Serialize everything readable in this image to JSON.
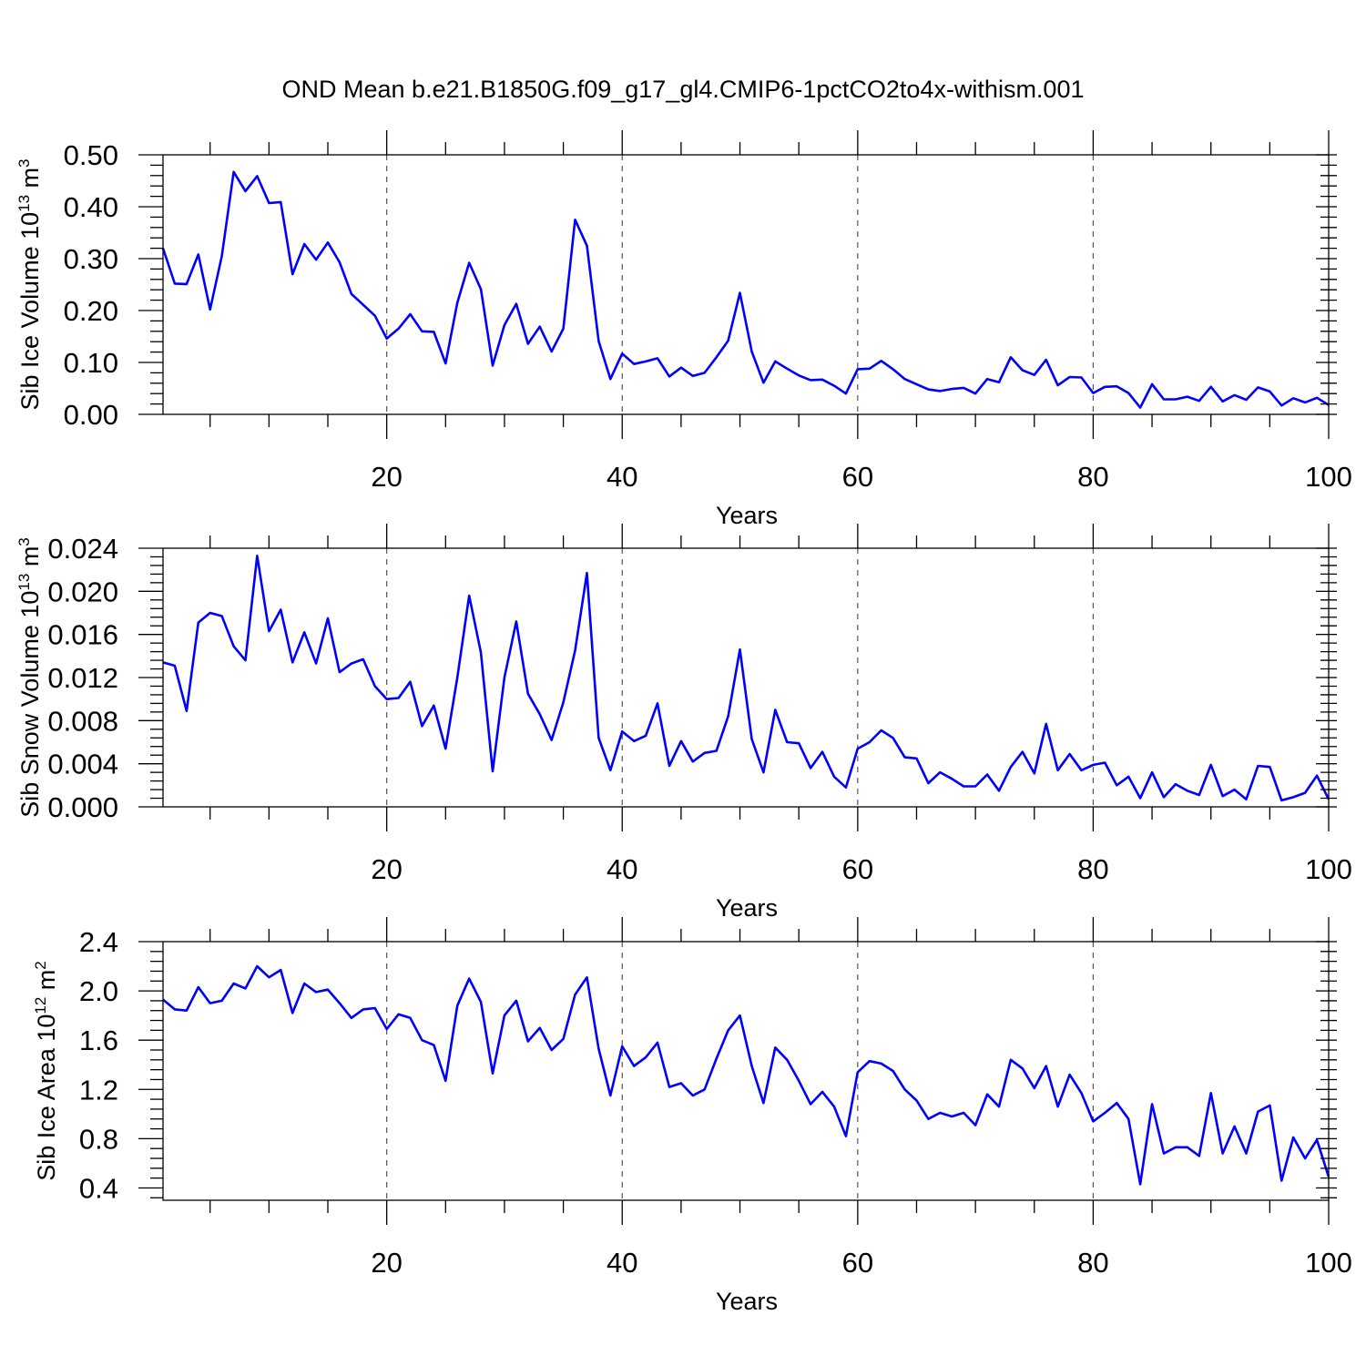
{
  "title": "OND Mean b.e21.B1850G.f09_g17_gl4.CMIP6-1pctCO2to4x-withism.001",
  "colors": {
    "series": "#0000ff",
    "axis": "#000000",
    "grid": "#555555",
    "background": "#ffffff"
  },
  "chart_data": [
    {
      "type": "line",
      "title": "",
      "xlabel": "Years",
      "ylabel_main": "Sib Ice Volume 10",
      "ylabel_exp": "13",
      "ylabel_unit": " m",
      "ylabel_unit_exp": "3",
      "xlim": [
        1,
        100
      ],
      "ylim": [
        0,
        0.5
      ],
      "xticks": [
        20,
        40,
        60,
        80,
        100
      ],
      "xtick_labels": [
        "20",
        "40",
        "60",
        "80",
        "100"
      ],
      "yticks": [
        0,
        0.1,
        0.2,
        0.3,
        0.4,
        0.5
      ],
      "ytick_labels": [
        "0.00",
        "0.10",
        "0.20",
        "0.30",
        "0.40",
        "0.50"
      ],
      "grid_x": [
        20,
        40,
        60,
        80
      ],
      "series": [
        {
          "name": "Sib Ice Volume",
          "x": [
            1,
            2,
            3,
            4,
            5,
            6,
            7,
            8,
            9,
            10,
            11,
            12,
            13,
            14,
            15,
            16,
            17,
            18,
            19,
            20,
            21,
            22,
            23,
            24,
            25,
            26,
            27,
            28,
            29,
            30,
            31,
            32,
            33,
            34,
            35,
            36,
            37,
            38,
            39,
            40,
            41,
            42,
            43,
            44,
            45,
            46,
            47,
            48,
            49,
            50,
            51,
            52,
            53,
            54,
            55,
            56,
            57,
            58,
            59,
            60,
            61,
            62,
            63,
            64,
            65,
            66,
            67,
            68,
            69,
            70,
            71,
            72,
            73,
            74,
            75,
            76,
            77,
            78,
            79,
            80,
            81,
            82,
            83,
            84,
            85,
            86,
            87,
            88,
            89,
            90,
            91,
            92,
            93,
            94,
            95,
            96,
            97,
            98,
            99,
            100
          ],
          "values": [
            0.32,
            0.252,
            0.251,
            0.308,
            0.202,
            0.305,
            0.467,
            0.43,
            0.459,
            0.407,
            0.409,
            0.27,
            0.328,
            0.298,
            0.331,
            0.293,
            0.232,
            0.211,
            0.19,
            0.146,
            0.165,
            0.193,
            0.16,
            0.159,
            0.098,
            0.215,
            0.292,
            0.241,
            0.094,
            0.172,
            0.213,
            0.136,
            0.169,
            0.121,
            0.165,
            0.375,
            0.325,
            0.141,
            0.068,
            0.117,
            0.097,
            0.102,
            0.108,
            0.073,
            0.09,
            0.074,
            0.08,
            0.11,
            0.142,
            0.234,
            0.121,
            0.061,
            0.102,
            0.088,
            0.075,
            0.066,
            0.067,
            0.055,
            0.04,
            0.087,
            0.088,
            0.103,
            0.087,
            0.068,
            0.058,
            0.048,
            0.045,
            0.049,
            0.051,
            0.04,
            0.068,
            0.062,
            0.11,
            0.085,
            0.076,
            0.105,
            0.056,
            0.072,
            0.071,
            0.041,
            0.053,
            0.054,
            0.041,
            0.013,
            0.058,
            0.029,
            0.029,
            0.034,
            0.026,
            0.053,
            0.025,
            0.037,
            0.028,
            0.052,
            0.044,
            0.017,
            0.031,
            0.023,
            0.032,
            0.018
          ]
        }
      ]
    },
    {
      "type": "line",
      "title": "",
      "xlabel": "Years",
      "ylabel_main": "Sib Snow Volume 10",
      "ylabel_exp": "13",
      "ylabel_unit": " m",
      "ylabel_unit_exp": "3",
      "xlim": [
        1,
        100
      ],
      "ylim": [
        0,
        0.024
      ],
      "xticks": [
        20,
        40,
        60,
        80,
        100
      ],
      "xtick_labels": [
        "20",
        "40",
        "60",
        "80",
        "100"
      ],
      "yticks": [
        0,
        0.004,
        0.008,
        0.012,
        0.016,
        0.02,
        0.024
      ],
      "ytick_labels": [
        "0.000",
        "0.004",
        "0.008",
        "0.012",
        "0.016",
        "0.020",
        "0.024"
      ],
      "grid_x": [
        20,
        40,
        60,
        80
      ],
      "series": [
        {
          "name": "Sib Snow Volume",
          "x": [
            1,
            2,
            3,
            4,
            5,
            6,
            7,
            8,
            9,
            10,
            11,
            12,
            13,
            14,
            15,
            16,
            17,
            18,
            19,
            20,
            21,
            22,
            23,
            24,
            25,
            26,
            27,
            28,
            29,
            30,
            31,
            32,
            33,
            34,
            35,
            36,
            37,
            38,
            39,
            40,
            41,
            42,
            43,
            44,
            45,
            46,
            47,
            48,
            49,
            50,
            51,
            52,
            53,
            54,
            55,
            56,
            57,
            58,
            59,
            60,
            61,
            62,
            63,
            64,
            65,
            66,
            67,
            68,
            69,
            70,
            71,
            72,
            73,
            74,
            75,
            76,
            77,
            78,
            79,
            80,
            81,
            82,
            83,
            84,
            85,
            86,
            87,
            88,
            89,
            90,
            91,
            92,
            93,
            94,
            95,
            96,
            97,
            98,
            99,
            100
          ],
          "values": [
            0.0134,
            0.0131,
            0.0089,
            0.0171,
            0.018,
            0.0177,
            0.0149,
            0.0136,
            0.0233,
            0.0163,
            0.0183,
            0.0134,
            0.0162,
            0.0133,
            0.0175,
            0.0125,
            0.0133,
            0.0137,
            0.0112,
            0.01,
            0.0101,
            0.0116,
            0.0075,
            0.0094,
            0.0054,
            0.012,
            0.0196,
            0.0143,
            0.0033,
            0.012,
            0.0172,
            0.0105,
            0.0086,
            0.0062,
            0.0097,
            0.0145,
            0.0217,
            0.0064,
            0.0034,
            0.007,
            0.0061,
            0.0066,
            0.0096,
            0.0038,
            0.0061,
            0.0042,
            0.005,
            0.0052,
            0.0084,
            0.0146,
            0.0063,
            0.0032,
            0.009,
            0.006,
            0.0059,
            0.0036,
            0.0051,
            0.0028,
            0.0018,
            0.0054,
            0.006,
            0.0071,
            0.0064,
            0.0046,
            0.0045,
            0.0022,
            0.0032,
            0.0026,
            0.0019,
            0.0019,
            0.003,
            0.0015,
            0.0037,
            0.0051,
            0.0031,
            0.0077,
            0.0034,
            0.0049,
            0.0034,
            0.0039,
            0.0041,
            0.002,
            0.0028,
            0.0008,
            0.0032,
            0.0009,
            0.0021,
            0.0015,
            0.0011,
            0.0039,
            0.001,
            0.0016,
            0.0007,
            0.0038,
            0.0037,
            0.0006,
            0.0009,
            0.0013,
            0.0029,
            0.0007
          ]
        }
      ]
    },
    {
      "type": "line",
      "title": "",
      "xlabel": "Years",
      "ylabel_main": "Sib Ice Area 10",
      "ylabel_exp": "12",
      "ylabel_unit": " m",
      "ylabel_unit_exp": "2",
      "xlim": [
        1,
        100
      ],
      "ylim": [
        0.3,
        2.4
      ],
      "xticks": [
        20,
        40,
        60,
        80,
        100
      ],
      "xtick_labels": [
        "20",
        "40",
        "60",
        "80",
        "100"
      ],
      "yticks": [
        0.4,
        0.8,
        1.2,
        1.6,
        2.0,
        2.4
      ],
      "ytick_labels": [
        "0.4",
        "0.8",
        "1.2",
        "1.6",
        "2.0",
        "2.4"
      ],
      "grid_x": [
        20,
        40,
        60,
        80
      ],
      "series": [
        {
          "name": "Sib Ice Area",
          "x": [
            1,
            2,
            3,
            4,
            5,
            6,
            7,
            8,
            9,
            10,
            11,
            12,
            13,
            14,
            15,
            16,
            17,
            18,
            19,
            20,
            21,
            22,
            23,
            24,
            25,
            26,
            27,
            28,
            29,
            30,
            31,
            32,
            33,
            34,
            35,
            36,
            37,
            38,
            39,
            40,
            41,
            42,
            43,
            44,
            45,
            46,
            47,
            48,
            49,
            50,
            51,
            52,
            53,
            54,
            55,
            56,
            57,
            58,
            59,
            60,
            61,
            62,
            63,
            64,
            65,
            66,
            67,
            68,
            69,
            70,
            71,
            72,
            73,
            74,
            75,
            76,
            77,
            78,
            79,
            80,
            81,
            82,
            83,
            84,
            85,
            86,
            87,
            88,
            89,
            90,
            91,
            92,
            93,
            94,
            95,
            96,
            97,
            98,
            99,
            100
          ],
          "values": [
            1.93,
            1.85,
            1.84,
            2.03,
            1.9,
            1.92,
            2.06,
            2.02,
            2.2,
            2.11,
            2.17,
            1.82,
            2.06,
            1.99,
            2.01,
            1.9,
            1.78,
            1.85,
            1.86,
            1.69,
            1.81,
            1.78,
            1.6,
            1.56,
            1.27,
            1.88,
            2.1,
            1.91,
            1.33,
            1.8,
            1.92,
            1.59,
            1.7,
            1.52,
            1.61,
            1.97,
            2.11,
            1.53,
            1.15,
            1.55,
            1.39,
            1.46,
            1.58,
            1.22,
            1.25,
            1.15,
            1.2,
            1.45,
            1.68,
            1.8,
            1.39,
            1.09,
            1.54,
            1.44,
            1.27,
            1.08,
            1.18,
            1.06,
            0.82,
            1.34,
            1.43,
            1.41,
            1.35,
            1.2,
            1.11,
            0.96,
            1.01,
            0.98,
            1.01,
            0.91,
            1.16,
            1.06,
            1.44,
            1.37,
            1.21,
            1.39,
            1.06,
            1.32,
            1.17,
            0.94,
            1.01,
            1.09,
            0.96,
            0.43,
            1.08,
            0.68,
            0.73,
            0.73,
            0.66,
            1.17,
            0.68,
            0.9,
            0.68,
            1.02,
            1.07,
            0.46,
            0.81,
            0.64,
            0.79,
            0.49
          ]
        }
      ]
    }
  ]
}
